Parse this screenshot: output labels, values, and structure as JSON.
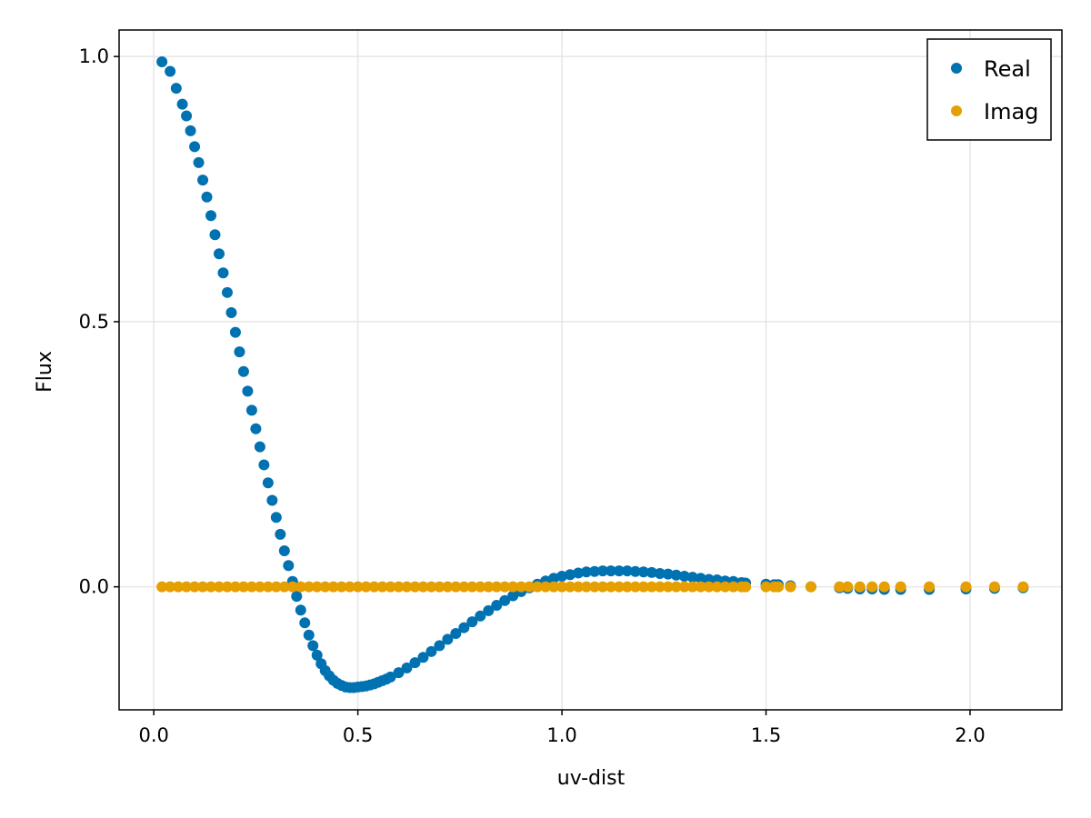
{
  "chart_data": {
    "type": "scatter",
    "title": "",
    "xlabel": "uv-dist",
    "ylabel": "Flux",
    "xlim": [
      -0.085,
      2.225
    ],
    "ylim": [
      -0.232,
      1.05
    ],
    "xticks": [
      0.0,
      0.5,
      1.0,
      1.5,
      2.0
    ],
    "xtick_labels": [
      "0.0",
      "0.5",
      "1.0",
      "1.5",
      "2.0"
    ],
    "yticks": [
      0.0,
      0.5,
      1.0
    ],
    "ytick_labels": [
      "0.0",
      "0.5",
      "1.0"
    ],
    "grid": true,
    "legend_position": "top-right",
    "series": [
      {
        "name": "Real",
        "color": "#0072b2",
        "x": [
          0.02,
          0.04,
          0.055,
          0.07,
          0.08,
          0.09,
          0.1,
          0.11,
          0.12,
          0.13,
          0.14,
          0.15,
          0.16,
          0.17,
          0.18,
          0.19,
          0.2,
          0.21,
          0.22,
          0.23,
          0.24,
          0.25,
          0.26,
          0.27,
          0.28,
          0.29,
          0.3,
          0.31,
          0.32,
          0.33,
          0.34,
          0.35,
          0.36,
          0.37,
          0.38,
          0.39,
          0.4,
          0.41,
          0.42,
          0.43,
          0.44,
          0.45,
          0.46,
          0.47,
          0.48,
          0.49,
          0.5,
          0.51,
          0.52,
          0.53,
          0.54,
          0.55,
          0.56,
          0.57,
          0.58,
          0.6,
          0.62,
          0.64,
          0.66,
          0.68,
          0.7,
          0.72,
          0.74,
          0.76,
          0.78,
          0.8,
          0.82,
          0.84,
          0.86,
          0.88,
          0.9,
          0.92,
          0.94,
          0.96,
          0.98,
          1.0,
          1.02,
          1.04,
          1.06,
          1.08,
          1.1,
          1.12,
          1.14,
          1.16,
          1.18,
          1.2,
          1.22,
          1.24,
          1.26,
          1.28,
          1.3,
          1.32,
          1.34,
          1.36,
          1.38,
          1.4,
          1.42,
          1.44,
          1.45,
          1.5,
          1.52,
          1.53,
          1.56,
          1.61,
          1.68,
          1.7,
          1.73,
          1.76,
          1.79,
          1.83,
          1.9,
          1.99,
          2.06,
          2.13
        ],
        "y": [
          0.99,
          0.972,
          0.94,
          0.91,
          0.888,
          0.86,
          0.83,
          0.8,
          0.767,
          0.735,
          0.7,
          0.664,
          0.628,
          0.592,
          0.555,
          0.517,
          0.48,
          0.443,
          0.406,
          0.369,
          0.333,
          0.298,
          0.264,
          0.23,
          0.196,
          0.163,
          0.131,
          0.099,
          0.068,
          0.04,
          0.01,
          -0.018,
          -0.044,
          -0.068,
          -0.091,
          -0.111,
          -0.129,
          -0.145,
          -0.158,
          -0.168,
          -0.176,
          -0.182,
          -0.186,
          -0.189,
          -0.19,
          -0.19,
          -0.189,
          -0.188,
          -0.187,
          -0.185,
          -0.183,
          -0.18,
          -0.177,
          -0.174,
          -0.17,
          -0.162,
          -0.153,
          -0.143,
          -0.133,
          -0.122,
          -0.111,
          -0.099,
          -0.088,
          -0.077,
          -0.066,
          -0.055,
          -0.045,
          -0.035,
          -0.026,
          -0.017,
          -0.009,
          -0.002,
          0.005,
          0.011,
          0.016,
          0.02,
          0.023,
          0.026,
          0.028,
          0.029,
          0.03,
          0.03,
          0.03,
          0.03,
          0.029,
          0.028,
          0.027,
          0.025,
          0.024,
          0.022,
          0.02,
          0.018,
          0.016,
          0.014,
          0.013,
          0.011,
          0.01,
          0.008,
          0.007,
          0.005,
          0.004,
          0.004,
          0.002,
          0.0,
          -0.002,
          -0.003,
          -0.004,
          -0.004,
          -0.005,
          -0.005,
          -0.005,
          -0.004,
          -0.003,
          -0.002
        ]
      },
      {
        "name": "Imag",
        "color": "#e69f00",
        "x": [
          0.02,
          0.04,
          0.06,
          0.08,
          0.1,
          0.12,
          0.14,
          0.16,
          0.18,
          0.2,
          0.22,
          0.24,
          0.26,
          0.28,
          0.3,
          0.32,
          0.34,
          0.36,
          0.38,
          0.4,
          0.42,
          0.44,
          0.46,
          0.48,
          0.5,
          0.52,
          0.54,
          0.56,
          0.58,
          0.6,
          0.62,
          0.64,
          0.66,
          0.68,
          0.7,
          0.72,
          0.74,
          0.76,
          0.78,
          0.8,
          0.82,
          0.84,
          0.86,
          0.88,
          0.9,
          0.92,
          0.94,
          0.96,
          0.98,
          1.0,
          1.02,
          1.04,
          1.06,
          1.08,
          1.1,
          1.12,
          1.14,
          1.16,
          1.18,
          1.2,
          1.22,
          1.24,
          1.26,
          1.28,
          1.3,
          1.32,
          1.34,
          1.36,
          1.38,
          1.4,
          1.42,
          1.44,
          1.45,
          1.5,
          1.52,
          1.53,
          1.56,
          1.61,
          1.68,
          1.7,
          1.73,
          1.76,
          1.79,
          1.83,
          1.9,
          1.99,
          2.06,
          2.13
        ],
        "y": [
          0.0,
          0.0,
          0.0,
          0.0,
          0.0,
          0.0,
          0.0,
          0.0,
          0.0,
          0.0,
          0.0,
          0.0,
          0.0,
          0.0,
          0.0,
          0.0,
          0.0,
          0.0,
          0.0,
          0.0,
          0.0,
          0.0,
          0.0,
          0.0,
          0.0,
          0.0,
          0.0,
          0.0,
          0.0,
          0.0,
          0.0,
          0.0,
          0.0,
          0.0,
          0.0,
          0.0,
          0.0,
          0.0,
          0.0,
          0.0,
          0.0,
          0.0,
          0.0,
          0.0,
          0.0,
          0.0,
          0.0,
          0.0,
          0.0,
          0.0,
          0.0,
          0.0,
          0.0,
          0.0,
          0.0,
          0.0,
          0.0,
          0.0,
          0.0,
          0.0,
          0.0,
          0.0,
          0.0,
          0.0,
          0.0,
          0.0,
          0.0,
          0.0,
          0.0,
          0.0,
          0.0,
          0.0,
          0.0,
          0.0,
          0.0,
          0.0,
          0.0,
          0.0,
          0.0,
          0.0,
          0.0,
          0.0,
          0.0,
          0.0,
          0.0,
          0.0,
          0.0,
          0.0
        ]
      }
    ]
  }
}
